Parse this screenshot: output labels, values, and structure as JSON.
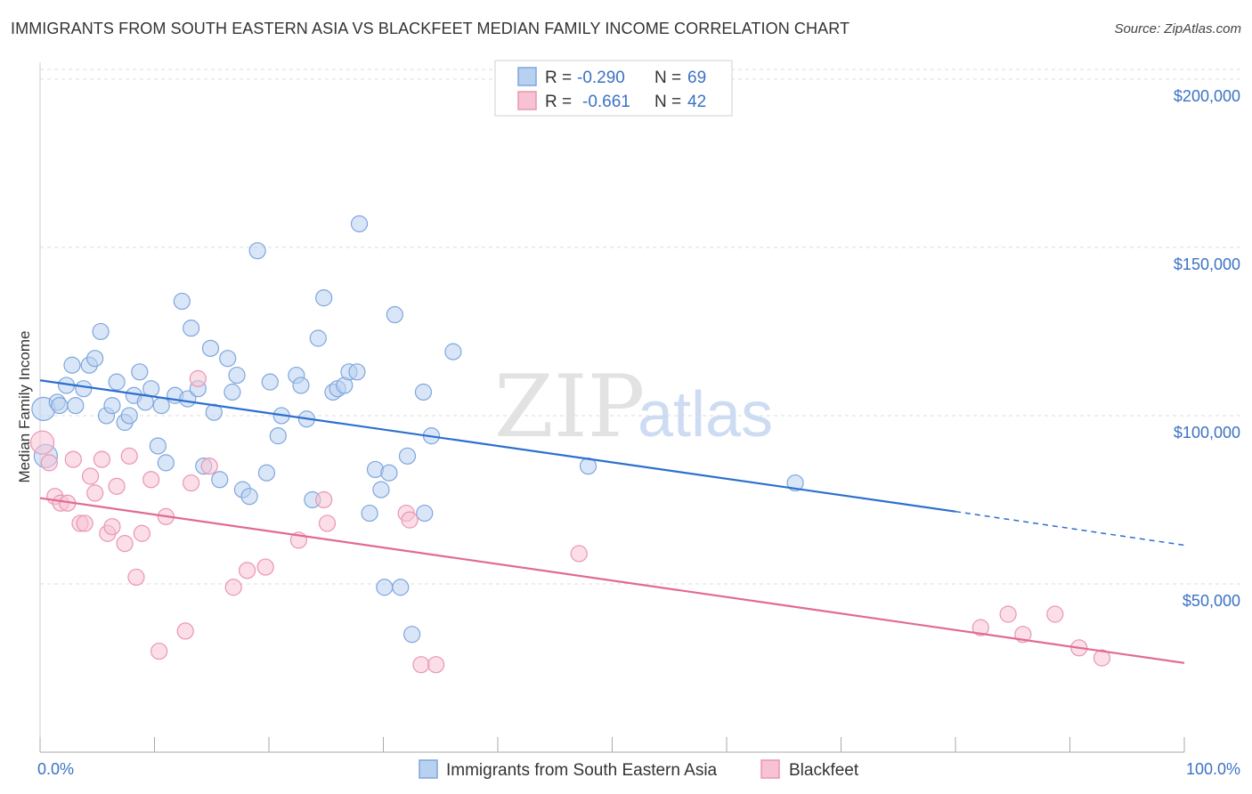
{
  "title": "IMMIGRANTS FROM SOUTH EASTERN ASIA VS BLACKFEET MEDIAN FAMILY INCOME CORRELATION CHART",
  "source": "Source: ZipAtlas.com",
  "watermark": {
    "zip": "ZIP",
    "atlas": "atlas"
  },
  "colors": {
    "blue_fill": "#b9d1f0",
    "blue_stroke": "#7ea6dd",
    "blue_line": "#2c6fcf",
    "pink_fill": "#f7c3d3",
    "pink_stroke": "#e996b2",
    "pink_line": "#e06a94",
    "tick_text": "#3b72c4",
    "grid": "#d9d9d9"
  },
  "legend": {
    "rows": [
      {
        "r_label": "R =",
        "r_value": "-0.290",
        "n_label": "N =",
        "n_value": "69"
      },
      {
        "r_label": "R =",
        "r_value": "-0.661",
        "n_label": "N =",
        "n_value": "42"
      }
    ]
  },
  "chart_data": {
    "type": "scatter",
    "title": "IMMIGRANTS FROM SOUTH EASTERN ASIA VS BLACKFEET MEDIAN FAMILY INCOME CORRELATION CHART",
    "xlabel": "",
    "ylabel": "Median Family Income",
    "xlim": [
      0,
      100
    ],
    "ylim": [
      0,
      205000
    ],
    "x_tick_labels": [
      "0.0%",
      "100.0%"
    ],
    "y_ticks": [
      50000,
      100000,
      150000,
      200000
    ],
    "y_tick_labels": [
      "$50,000",
      "$100,000",
      "$150,000",
      "$200,000"
    ],
    "series": [
      {
        "name": "Immigrants from South Eastern Asia",
        "color": "#7ea6dd",
        "trend": {
          "x0": 0,
          "y0": 110500,
          "x1": 80,
          "y1": 71500,
          "dashed_to_x": 100,
          "dashed_to_y": 61500
        },
        "points": [
          {
            "x": 0.3,
            "y": 102000,
            "big": true
          },
          {
            "x": 0.5,
            "y": 88000,
            "big": true
          },
          {
            "x": 1.5,
            "y": 104000
          },
          {
            "x": 1.7,
            "y": 103000
          },
          {
            "x": 2.3,
            "y": 109000
          },
          {
            "x": 2.8,
            "y": 115000
          },
          {
            "x": 3.1,
            "y": 103000
          },
          {
            "x": 3.8,
            "y": 108000
          },
          {
            "x": 4.3,
            "y": 115000
          },
          {
            "x": 4.8,
            "y": 117000
          },
          {
            "x": 5.3,
            "y": 125000
          },
          {
            "x": 5.8,
            "y": 100000
          },
          {
            "x": 6.3,
            "y": 103000
          },
          {
            "x": 6.7,
            "y": 110000
          },
          {
            "x": 7.4,
            "y": 98000
          },
          {
            "x": 7.8,
            "y": 100000
          },
          {
            "x": 8.2,
            "y": 106000
          },
          {
            "x": 8.7,
            "y": 113000
          },
          {
            "x": 9.2,
            "y": 104000
          },
          {
            "x": 9.7,
            "y": 108000
          },
          {
            "x": 10.3,
            "y": 91000
          },
          {
            "x": 10.6,
            "y": 103000
          },
          {
            "x": 11.0,
            "y": 86000
          },
          {
            "x": 11.8,
            "y": 106000
          },
          {
            "x": 12.4,
            "y": 134000
          },
          {
            "x": 12.9,
            "y": 105000
          },
          {
            "x": 13.2,
            "y": 126000
          },
          {
            "x": 13.8,
            "y": 108000
          },
          {
            "x": 14.3,
            "y": 85000
          },
          {
            "x": 14.9,
            "y": 120000
          },
          {
            "x": 15.2,
            "y": 101000
          },
          {
            "x": 15.7,
            "y": 81000
          },
          {
            "x": 16.4,
            "y": 117000
          },
          {
            "x": 16.8,
            "y": 107000
          },
          {
            "x": 17.2,
            "y": 112000
          },
          {
            "x": 17.7,
            "y": 78000
          },
          {
            "x": 18.3,
            "y": 76000
          },
          {
            "x": 19.0,
            "y": 149000
          },
          {
            "x": 19.8,
            "y": 83000
          },
          {
            "x": 20.1,
            "y": 110000
          },
          {
            "x": 20.8,
            "y": 94000
          },
          {
            "x": 21.1,
            "y": 100000
          },
          {
            "x": 22.4,
            "y": 112000
          },
          {
            "x": 22.8,
            "y": 109000
          },
          {
            "x": 23.3,
            "y": 99000
          },
          {
            "x": 23.8,
            "y": 75000
          },
          {
            "x": 24.3,
            "y": 123000
          },
          {
            "x": 24.8,
            "y": 135000
          },
          {
            "x": 25.6,
            "y": 107000
          },
          {
            "x": 26.0,
            "y": 108000
          },
          {
            "x": 26.6,
            "y": 109000
          },
          {
            "x": 27.0,
            "y": 113000
          },
          {
            "x": 27.7,
            "y": 113000
          },
          {
            "x": 27.9,
            "y": 157000
          },
          {
            "x": 28.8,
            "y": 71000
          },
          {
            "x": 29.3,
            "y": 84000
          },
          {
            "x": 29.8,
            "y": 78000
          },
          {
            "x": 30.1,
            "y": 49000
          },
          {
            "x": 30.5,
            "y": 83000
          },
          {
            "x": 31.0,
            "y": 130000
          },
          {
            "x": 31.5,
            "y": 49000
          },
          {
            "x": 32.1,
            "y": 88000
          },
          {
            "x": 32.5,
            "y": 35000
          },
          {
            "x": 33.5,
            "y": 107000
          },
          {
            "x": 33.6,
            "y": 71000
          },
          {
            "x": 34.2,
            "y": 94000
          },
          {
            "x": 36.1,
            "y": 119000
          },
          {
            "x": 47.9,
            "y": 85000
          },
          {
            "x": 66.0,
            "y": 80000
          }
        ]
      },
      {
        "name": "Blackfeet",
        "color": "#e996b2",
        "trend": {
          "x0": 0,
          "y0": 75500,
          "x1": 100,
          "y1": 26500
        },
        "points": [
          {
            "x": 0.2,
            "y": 92000,
            "big": true
          },
          {
            "x": 0.8,
            "y": 86000
          },
          {
            "x": 1.3,
            "y": 76000
          },
          {
            "x": 1.8,
            "y": 74000
          },
          {
            "x": 2.4,
            "y": 74000
          },
          {
            "x": 2.9,
            "y": 87000
          },
          {
            "x": 3.5,
            "y": 68000
          },
          {
            "x": 3.9,
            "y": 68000
          },
          {
            "x": 4.4,
            "y": 82000
          },
          {
            "x": 4.8,
            "y": 77000
          },
          {
            "x": 5.4,
            "y": 87000
          },
          {
            "x": 5.9,
            "y": 65000
          },
          {
            "x": 6.3,
            "y": 67000
          },
          {
            "x": 6.7,
            "y": 79000
          },
          {
            "x": 7.4,
            "y": 62000
          },
          {
            "x": 7.8,
            "y": 88000
          },
          {
            "x": 8.4,
            "y": 52000
          },
          {
            "x": 8.9,
            "y": 65000
          },
          {
            "x": 9.7,
            "y": 81000
          },
          {
            "x": 10.4,
            "y": 30000
          },
          {
            "x": 11.0,
            "y": 70000
          },
          {
            "x": 12.7,
            "y": 36000
          },
          {
            "x": 13.2,
            "y": 80000
          },
          {
            "x": 13.8,
            "y": 111000
          },
          {
            "x": 14.8,
            "y": 85000
          },
          {
            "x": 16.9,
            "y": 49000
          },
          {
            "x": 18.1,
            "y": 54000
          },
          {
            "x": 19.7,
            "y": 55000
          },
          {
            "x": 22.6,
            "y": 63000
          },
          {
            "x": 24.8,
            "y": 75000
          },
          {
            "x": 25.1,
            "y": 68000
          },
          {
            "x": 32.0,
            "y": 71000
          },
          {
            "x": 32.3,
            "y": 69000
          },
          {
            "x": 33.3,
            "y": 26000
          },
          {
            "x": 34.6,
            "y": 26000
          },
          {
            "x": 47.1,
            "y": 59000
          },
          {
            "x": 82.2,
            "y": 37000
          },
          {
            "x": 84.6,
            "y": 41000
          },
          {
            "x": 85.9,
            "y": 35000
          },
          {
            "x": 88.7,
            "y": 41000
          },
          {
            "x": 90.8,
            "y": 31000
          },
          {
            "x": 92.8,
            "y": 28000
          }
        ]
      }
    ]
  }
}
